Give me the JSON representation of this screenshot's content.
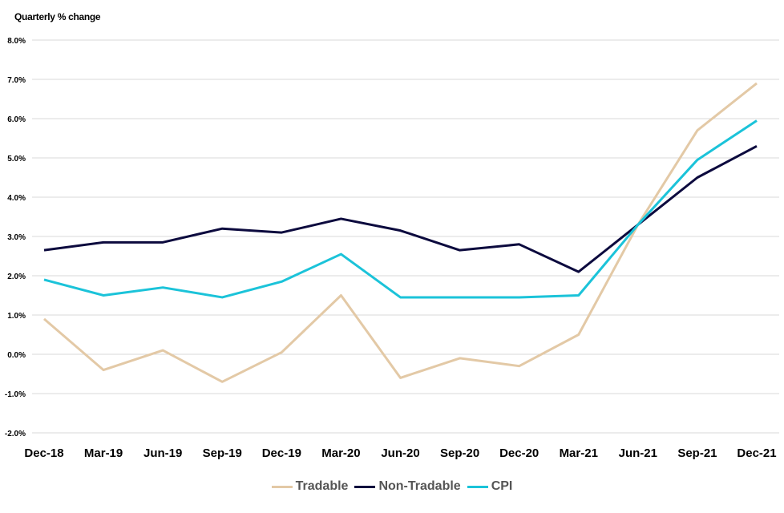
{
  "chart_data": {
    "type": "line",
    "ylabel": "Quarterly % change",
    "xlabel": "",
    "categories": [
      "Dec-18",
      "Mar-19",
      "Jun-19",
      "Sep-19",
      "Dec-19",
      "Mar-20",
      "Jun-20",
      "Sep-20",
      "Dec-20",
      "Mar-21",
      "Jun-21",
      "Sep-21",
      "Dec-21"
    ],
    "ylim": [
      -2.0,
      8.0
    ],
    "yticks": [
      "-2.0%",
      "-1.0%",
      "0.0%",
      "1.0%",
      "2.0%",
      "3.0%",
      "4.0%",
      "5.0%",
      "6.0%",
      "7.0%",
      "8.0%"
    ],
    "grid": true,
    "legend_position": "bottom",
    "series": [
      {
        "name": "Tradable",
        "color": "#e3c9a6",
        "values": [
          0.9,
          -0.4,
          0.1,
          -0.7,
          0.05,
          1.5,
          -0.6,
          -0.1,
          -0.3,
          0.5,
          3.3,
          5.7,
          6.9
        ]
      },
      {
        "name": "Non-Tradable",
        "color": "#0c0a3e",
        "values": [
          2.65,
          2.85,
          2.85,
          3.2,
          3.1,
          3.45,
          3.15,
          2.65,
          2.8,
          2.1,
          3.3,
          4.5,
          5.3
        ]
      },
      {
        "name": "CPI",
        "color": "#1bc3d9",
        "values": [
          1.9,
          1.5,
          1.7,
          1.45,
          1.85,
          2.55,
          1.45,
          1.45,
          1.45,
          1.5,
          3.3,
          4.95,
          5.95
        ]
      }
    ]
  }
}
